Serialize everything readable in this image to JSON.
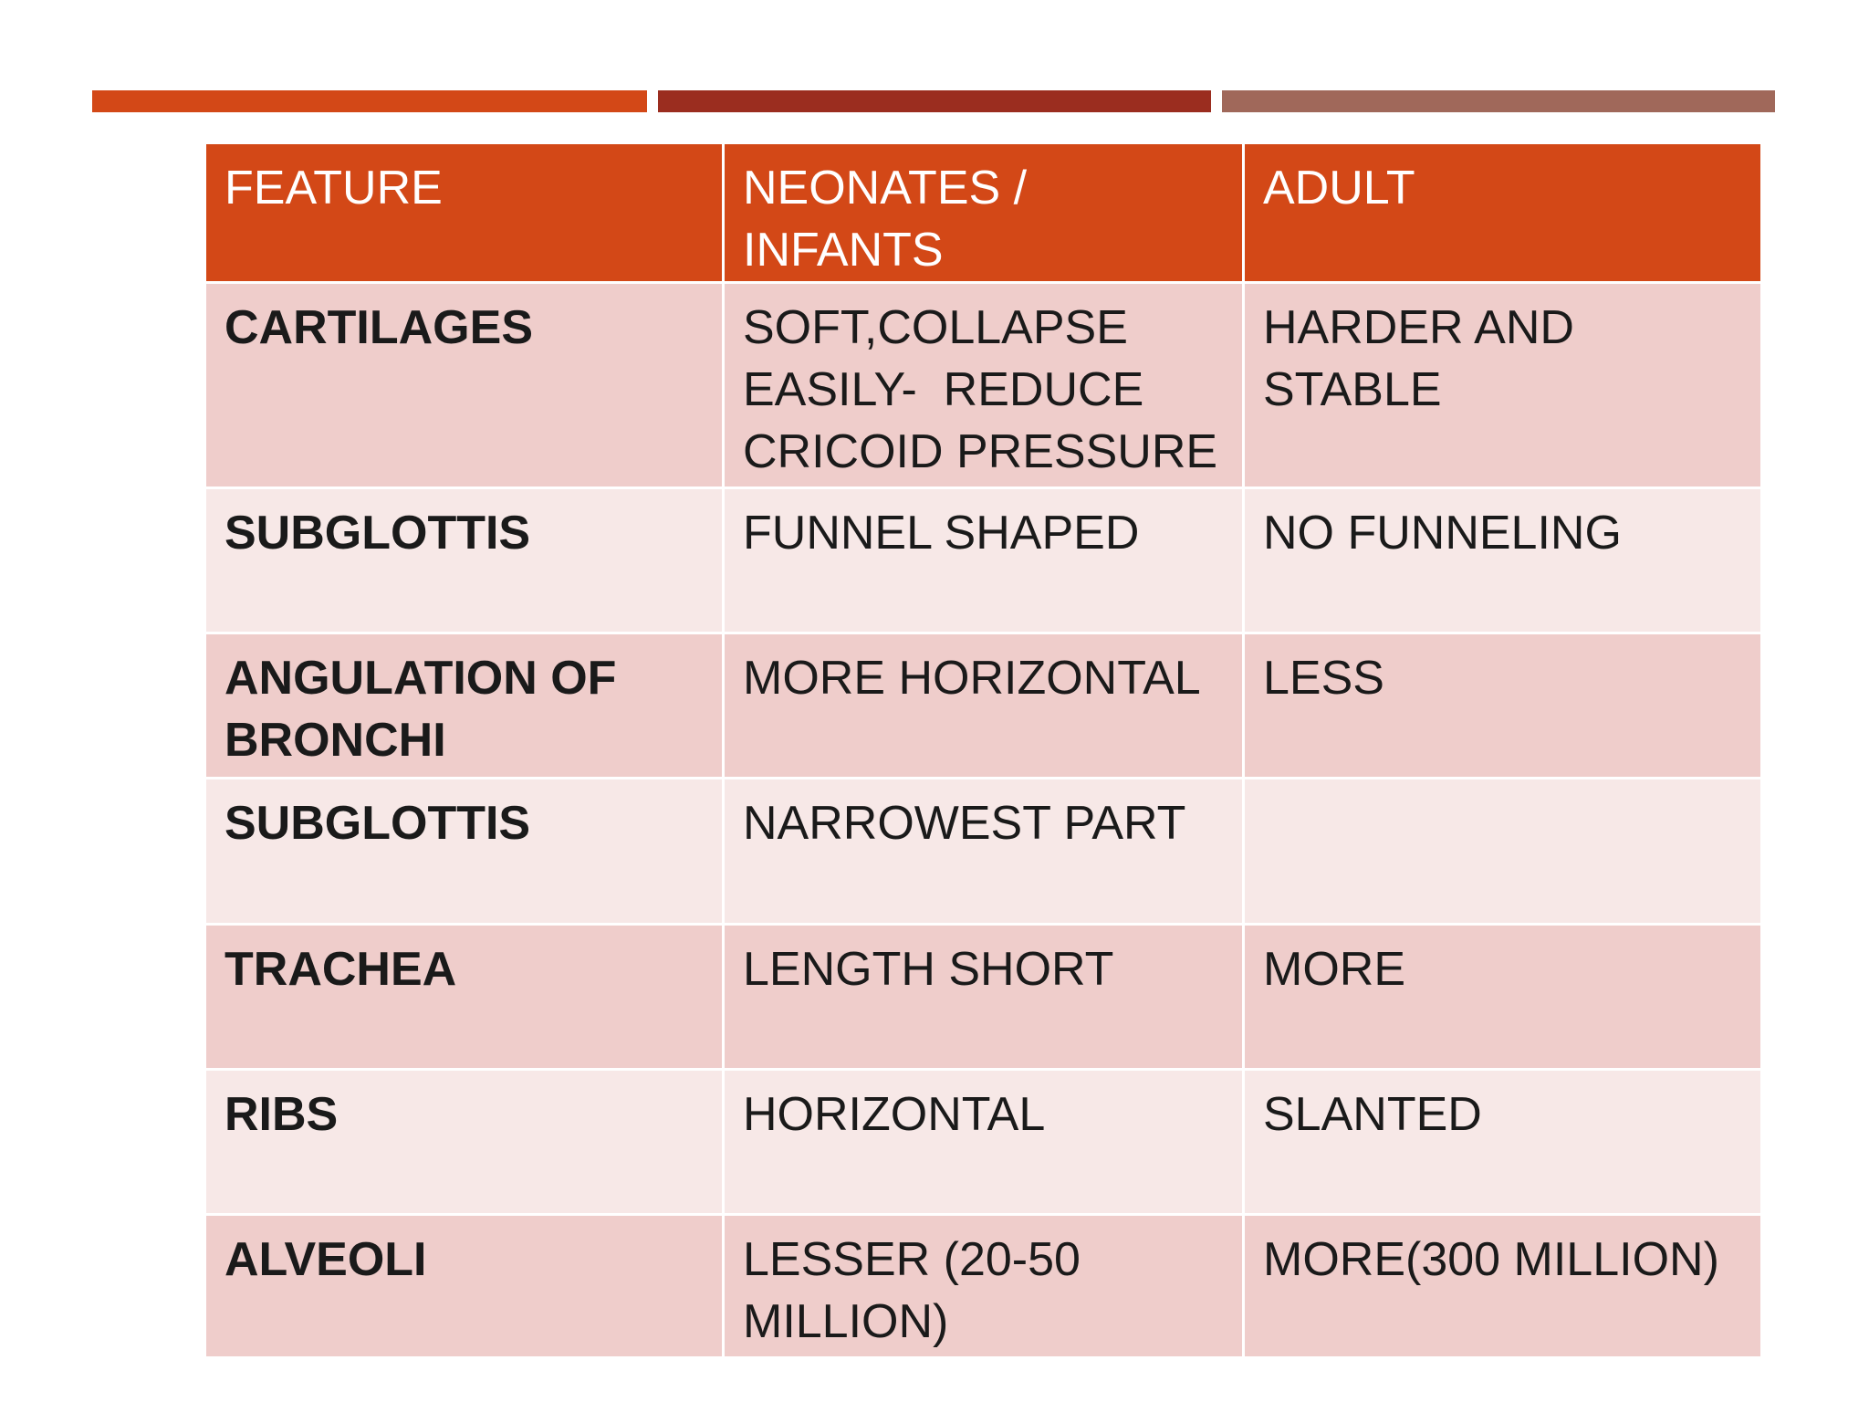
{
  "table": {
    "header": [
      "FEATURE",
      "NEONATES / INFANTS",
      "ADULT"
    ],
    "rows": [
      [
        "CARTILAGES",
        "SOFT,COLLAPSE EASILY-  REDUCE CRICOID PRESSURE",
        "HARDER AND STABLE"
      ],
      [
        "SUBGLOTTIS",
        "FUNNEL SHAPED",
        "NO FUNNELING"
      ],
      [
        "ANGULATION OF BRONCHI",
        "MORE HORIZONTAL",
        "LESS"
      ],
      [
        "SUBGLOTTIS",
        "NARROWEST PART",
        null
      ],
      [
        "TRACHEA",
        "LENGTH SHORT",
        "MORE"
      ],
      [
        "RIBS",
        "HORIZONTAL",
        "SLANTED"
      ],
      [
        "ALVEOLI",
        "LESSER (20-50 MILLION)",
        "MORE(300 MILLION)"
      ]
    ]
  }
}
